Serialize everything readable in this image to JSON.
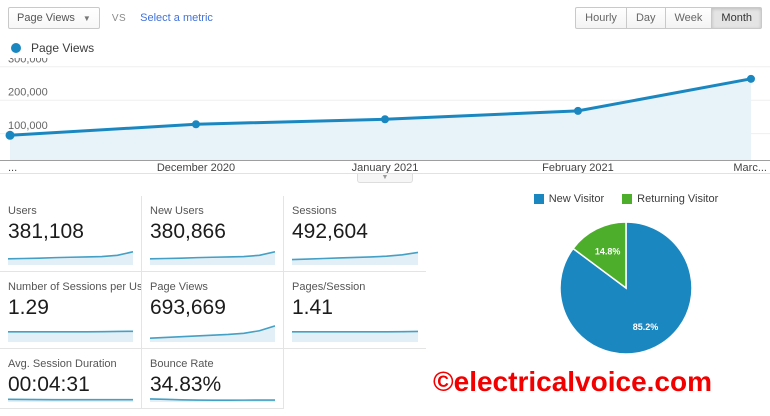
{
  "header": {
    "metric_selector_value": "Page Views",
    "dropdown_caret": "▼",
    "vs_label": "VS",
    "select_metric_label": "Select a metric",
    "granularity_options": [
      "Hourly",
      "Day",
      "Week",
      "Month"
    ],
    "granularity_selected": "Month"
  },
  "timeline_legend": "Page Views",
  "chart_data": [
    {
      "id": "page-views-timeline",
      "type": "area",
      "title": "Page Views",
      "x_tick_labels": [
        "...",
        "December 2020",
        "January 2021",
        "February 2021",
        "Marc..."
      ],
      "values": [
        95000,
        128000,
        143000,
        168000,
        264000
      ],
      "y_tick_labels": [
        "100,000",
        "200,000",
        "300,000"
      ],
      "y_tick_values": [
        100000,
        200000,
        300000
      ],
      "ylim": [
        0,
        310000
      ],
      "grid": true,
      "legend_position": "top-left",
      "line_color": "#1b87c0",
      "area_color": "#e8f2f9"
    },
    {
      "id": "visitor-type-pie",
      "type": "pie",
      "labels": [
        "New Visitor",
        "Returning Visitor"
      ],
      "values": [
        85.2,
        14.8
      ],
      "value_labels": [
        "85.2%",
        "14.8%"
      ],
      "colors": [
        "#1b87c0",
        "#4dae2c"
      ],
      "legend_position": "top"
    }
  ],
  "cards": [
    {
      "label": "Users",
      "value": "381,108",
      "spark": [
        0.3,
        0.32,
        0.34,
        0.37,
        0.39,
        0.41,
        0.43,
        0.5,
        0.7
      ]
    },
    {
      "label": "New Users",
      "value": "380,866",
      "spark": [
        0.3,
        0.32,
        0.34,
        0.37,
        0.39,
        0.41,
        0.43,
        0.5,
        0.7
      ]
    },
    {
      "label": "Sessions",
      "value": "492,604",
      "spark": [
        0.26,
        0.29,
        0.32,
        0.35,
        0.38,
        0.41,
        0.45,
        0.53,
        0.66
      ]
    },
    {
      "label": "Number of Sessions per User",
      "value": "1.29",
      "spark": [
        0.5,
        0.5,
        0.5,
        0.5,
        0.5,
        0.5,
        0.51,
        0.52,
        0.53
      ]
    },
    {
      "label": "Page Views",
      "value": "693,669",
      "spark": [
        0.16,
        0.2,
        0.24,
        0.28,
        0.32,
        0.36,
        0.42,
        0.56,
        0.82
      ]
    },
    {
      "label": "Pages/Session",
      "value": "1.41",
      "spark": [
        0.5,
        0.5,
        0.5,
        0.5,
        0.5,
        0.5,
        0.5,
        0.51,
        0.52
      ]
    },
    {
      "label": "Avg. Session Duration",
      "value": "00:04:31",
      "spark": [
        0.58,
        0.56,
        0.53,
        0.51,
        0.5,
        0.5,
        0.5,
        0.5,
        0.5
      ]
    },
    {
      "label": "Bounce Rate",
      "value": "34.83%",
      "spark": [
        0.68,
        0.6,
        0.47,
        0.41,
        0.39,
        0.39,
        0.4,
        0.41,
        0.42
      ]
    }
  ],
  "spark_style": {
    "line_color": "#44a0c4",
    "fill_color": "#e2eff7"
  },
  "collapse_icon": "▼",
  "watermark": "©electricalvoice.com"
}
